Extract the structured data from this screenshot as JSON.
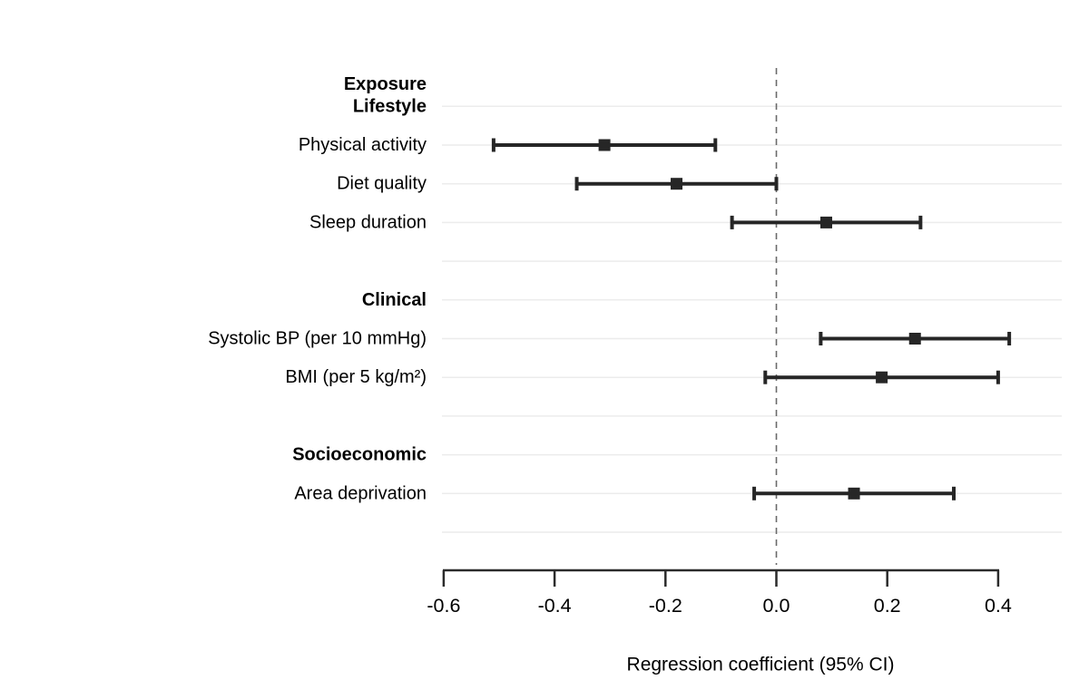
{
  "chart_data": {
    "type": "forest",
    "title": "",
    "xlabel": "Regression coefficient (95% CI)",
    "column_header": "Exposure",
    "xlim": [
      -0.6,
      0.45
    ],
    "x_ticks": [
      -0.6,
      -0.4,
      -0.2,
      0.0,
      0.2,
      0.4
    ],
    "x_tick_labels": [
      "-0.6",
      "-0.4",
      "-0.2",
      "0.0",
      "0.2",
      "0.4"
    ],
    "reference_line": 0.0,
    "grid": "horizontal-per-row",
    "legend": "none",
    "rows": [
      {
        "type": "group",
        "label": "Lifestyle"
      },
      {
        "type": "item",
        "label": "Physical activity",
        "estimate": -0.31,
        "ci_low": -0.51,
        "ci_high": -0.11
      },
      {
        "type": "item",
        "label": "Diet quality",
        "estimate": -0.18,
        "ci_low": -0.36,
        "ci_high": 0.0
      },
      {
        "type": "item",
        "label": "Sleep duration",
        "estimate": 0.09,
        "ci_low": -0.08,
        "ci_high": 0.26
      },
      {
        "type": "spacer",
        "label": null
      },
      {
        "type": "group",
        "label": "Clinical"
      },
      {
        "type": "item",
        "label": "Systolic BP (per 10 mmHg)",
        "estimate": 0.25,
        "ci_low": 0.08,
        "ci_high": 0.42
      },
      {
        "type": "item",
        "label": "BMI (per 5 kg/m²)",
        "estimate": 0.19,
        "ci_low": -0.02,
        "ci_high": 0.4
      },
      {
        "type": "spacer",
        "label": null
      },
      {
        "type": "group",
        "label": "Socioeconomic"
      },
      {
        "type": "item",
        "label": "Area deprivation",
        "estimate": 0.14,
        "ci_low": -0.04,
        "ci_high": 0.32
      },
      {
        "type": "spacer",
        "label": null
      }
    ],
    "colors": {
      "marker": "#262626",
      "ci_line": "#262626",
      "gridline": "#ececec",
      "reference_line": "#6a6a6a",
      "axis_line": "#2b2b2b",
      "text": "#000000",
      "background": "#ffffff"
    }
  }
}
